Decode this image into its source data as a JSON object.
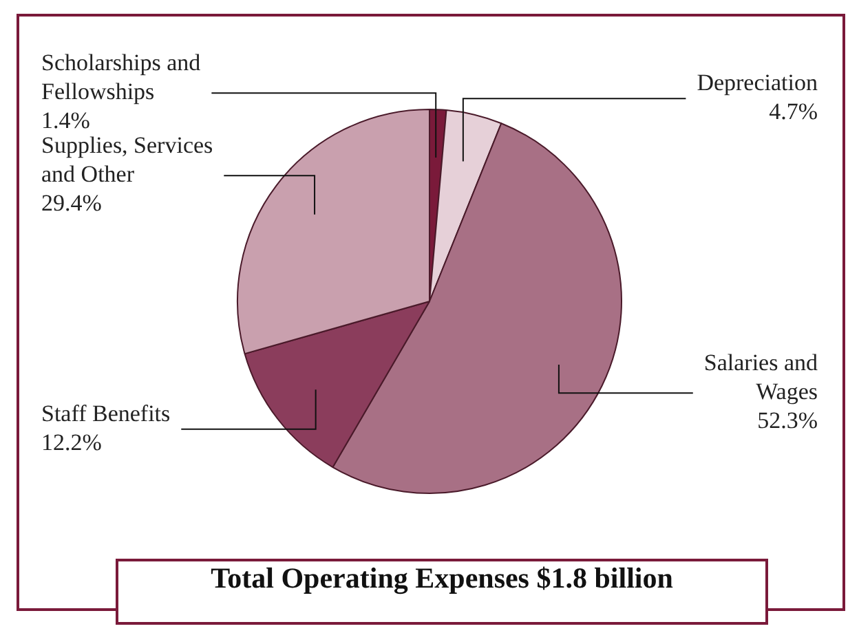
{
  "chart_data": {
    "type": "pie",
    "title": "Total Operating Expenses $1.8 billion",
    "categories": [
      "Scholarships and Fellowships",
      "Depreciation",
      "Salaries and Wages",
      "Staff Benefits",
      "Supplies, Services and Other"
    ],
    "values": [
      1.4,
      4.7,
      52.3,
      12.2,
      29.4
    ],
    "colors": [
      "#7a1a3a",
      "#e6d0d8",
      "#a87085",
      "#8b3d5c",
      "#c9a0ae"
    ],
    "value_labels": [
      "1.4%",
      "4.7%",
      "52.3%",
      "12.2%",
      "29.4%"
    ],
    "legend": false
  }
}
